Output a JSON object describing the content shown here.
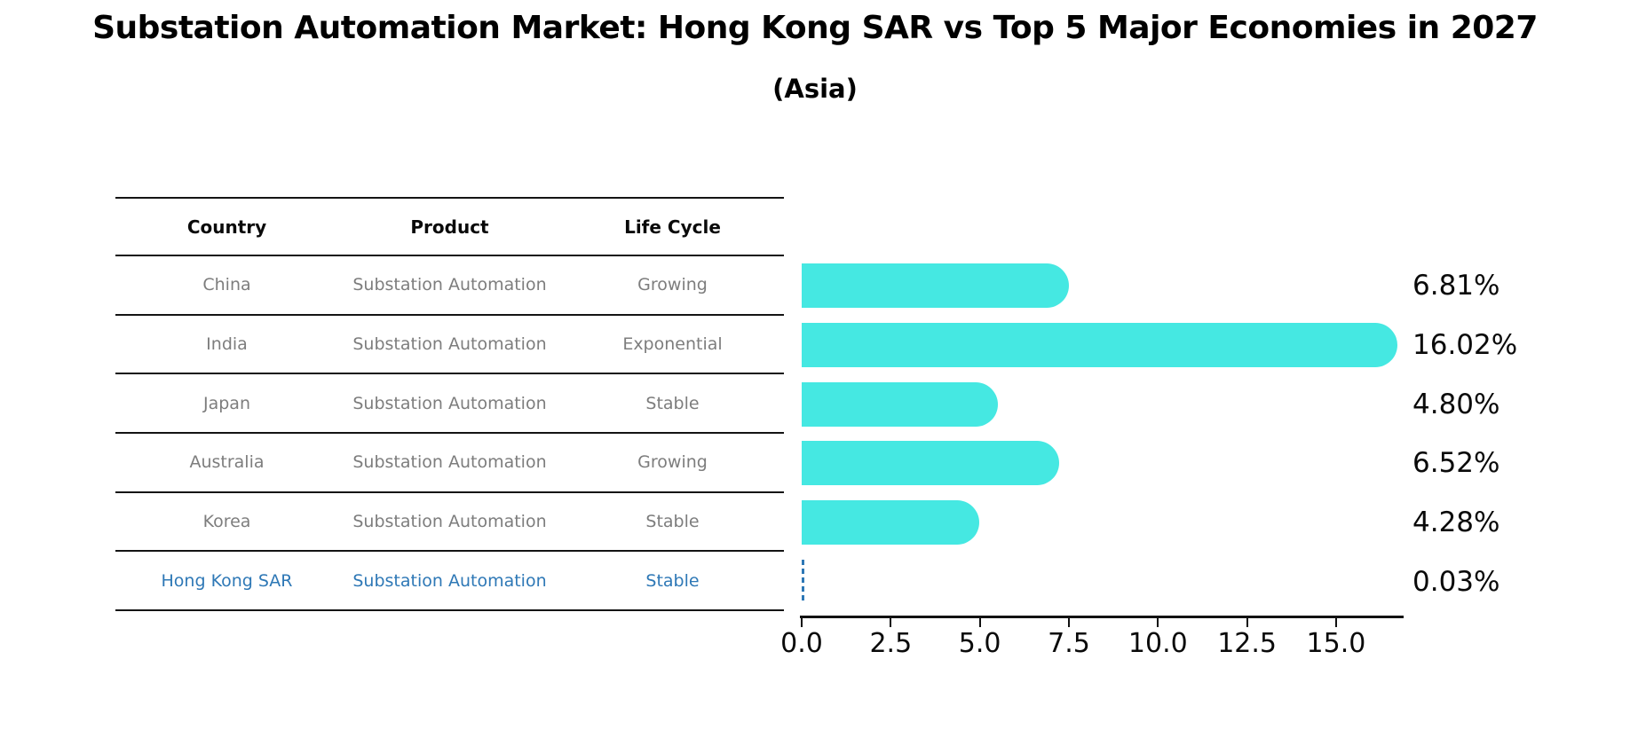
{
  "page": {
    "title": "Substation Automation Market: Hong Kong SAR vs Top 5 Major Economies in 2027",
    "subtitle": "(Asia)"
  },
  "table": {
    "headers": [
      "Country",
      "Product",
      "Life Cycle"
    ],
    "rows": [
      {
        "country": "China",
        "product": "Substation Automation",
        "life_cycle": "Growing",
        "highlight": false
      },
      {
        "country": "India",
        "product": "Substation Automation",
        "life_cycle": "Exponential",
        "highlight": false
      },
      {
        "country": "Japan",
        "product": "Substation Automation",
        "life_cycle": "Stable",
        "highlight": false
      },
      {
        "country": "Australia",
        "product": "Substation Automation",
        "life_cycle": "Growing",
        "highlight": false
      },
      {
        "country": "Korea",
        "product": "Substation Automation",
        "life_cycle": "Stable",
        "highlight": false
      },
      {
        "country": "Hong Kong SAR",
        "product": "Substation Automation",
        "life_cycle": "Stable",
        "highlight": true
      }
    ]
  },
  "chart_data": {
    "type": "bar",
    "orientation": "horizontal",
    "title": "Substation Automation Market: Hong Kong SAR vs Top 5 Major Economies in 2027",
    "subtitle": "(Asia)",
    "categories": [
      "China",
      "India",
      "Japan",
      "Australia",
      "Korea",
      "Hong Kong SAR"
    ],
    "values": [
      6.81,
      16.02,
      4.8,
      6.52,
      4.28,
      0.03
    ],
    "value_labels": [
      "6.81%",
      "16.02%",
      "4.80%",
      "6.52%",
      "4.28%",
      "0.03%"
    ],
    "xlabel": "",
    "ylabel": "",
    "xlim": [
      0,
      16.8
    ],
    "xticks": [
      0,
      2.5,
      5,
      7.5,
      10,
      12.5,
      15
    ],
    "xtick_labels": [
      "0.0",
      "2.5",
      "5.0",
      "7.5",
      "10.0",
      "12.5",
      "15.0"
    ],
    "grid": false,
    "legend": false,
    "highlight_index": 5,
    "colors": {
      "bar": "#45e8e2",
      "highlight": "#2e78b6",
      "axis": "#111111",
      "table_text": "#7d7d7d",
      "header_text": "#0a0a0a"
    }
  }
}
